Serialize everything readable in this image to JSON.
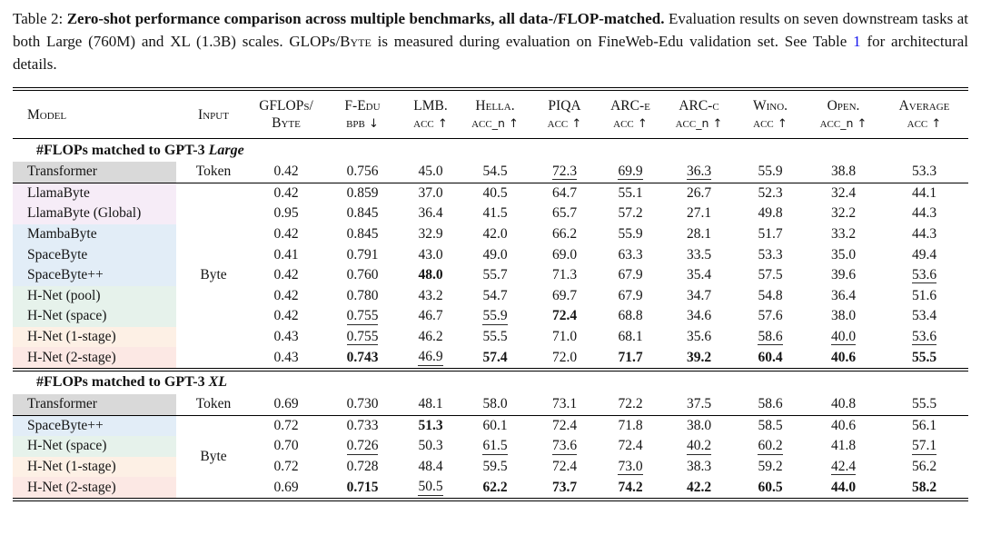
{
  "caption": {
    "label": "Table 2: ",
    "bold": "Zero-shot performance comparison across multiple benchmarks, all data-/FLOP-matched.",
    "body_1": " Evaluation results on seven downstream tasks at both Large (760M) and XL (1.3B) scales. GLOPs/",
    "smallcaps_1": "Byte",
    "body_2": " is measured during evaluation on FineWeb-Edu validation set. See Table ",
    "link": "1",
    "body_3": " for architectural details."
  },
  "colors": {
    "link_blue": "#1414ee",
    "rule_black": "#000000",
    "shades": {
      "gray": "#d9d9d9",
      "lavender": "#f6ecf7",
      "blue": "#e2edf7",
      "green": "#e6f2eb",
      "peach": "#fdf0e5",
      "pink": "#fce8e4"
    }
  },
  "table": {
    "columns": [
      {
        "key": "model",
        "title": "Model",
        "sub_sc": "",
        "sub_suffix": "",
        "arrow": ""
      },
      {
        "key": "input",
        "title": "Input",
        "sub_sc": "",
        "sub_suffix": "",
        "arrow": ""
      },
      {
        "key": "gflops",
        "title": "GFLOPs/",
        "sub_sc": "Byte",
        "sub_suffix": "",
        "arrow": ""
      },
      {
        "key": "fedu",
        "title": "F-Edu",
        "sub_sc": "bpb",
        "sub_suffix": "",
        "arrow": "↓"
      },
      {
        "key": "lmb",
        "title": "LMB.",
        "sub_sc": "acc",
        "sub_suffix": "",
        "arrow": "↑"
      },
      {
        "key": "hella",
        "title": "Hella.",
        "sub_sc": "acc",
        "sub_suffix": "_n",
        "arrow": "↑"
      },
      {
        "key": "piqa",
        "title": "PIQA",
        "sub_sc": "acc",
        "sub_suffix": "",
        "arrow": "↑"
      },
      {
        "key": "arce",
        "title": "ARC-e",
        "sub_sc": "acc",
        "sub_suffix": "",
        "arrow": "↑"
      },
      {
        "key": "arcc",
        "title": "ARC-c",
        "sub_sc": "acc",
        "sub_suffix": "_n",
        "arrow": "↑"
      },
      {
        "key": "wino",
        "title": "Wino.",
        "sub_sc": "acc",
        "sub_suffix": "",
        "arrow": "↑"
      },
      {
        "key": "open",
        "title": "Open.",
        "sub_sc": "acc",
        "sub_suffix": "_n",
        "arrow": "↑"
      },
      {
        "key": "avg",
        "title": "Average",
        "sub_sc": "acc",
        "sub_suffix": "",
        "arrow": "↑"
      }
    ],
    "sections": [
      {
        "header_prefix": "#FLOPs matched to GPT-3 ",
        "header_emph": "Large",
        "rows": [
          {
            "model": "Transformer",
            "shade": "gray",
            "input": {
              "label": "Token",
              "rowspan": 1
            },
            "sep_after": true,
            "values": [
              {
                "v": "0.42"
              },
              {
                "v": "0.756"
              },
              {
                "v": "45.0"
              },
              {
                "v": "54.5"
              },
              {
                "v": "72.3",
                "u": true
              },
              {
                "v": "69.9",
                "u": true
              },
              {
                "v": "36.3",
                "u": true
              },
              {
                "v": "55.9"
              },
              {
                "v": "38.8"
              },
              {
                "v": "53.3"
              }
            ]
          },
          {
            "model": "LlamaByte",
            "shade": "lavender",
            "input": {
              "label": "Byte",
              "rowspan": 9
            },
            "values": [
              {
                "v": "0.42"
              },
              {
                "v": "0.859"
              },
              {
                "v": "37.0"
              },
              {
                "v": "40.5"
              },
              {
                "v": "64.7"
              },
              {
                "v": "55.1"
              },
              {
                "v": "26.7"
              },
              {
                "v": "52.3"
              },
              {
                "v": "32.4"
              },
              {
                "v": "44.1"
              }
            ]
          },
          {
            "model": "LlamaByte (Global)",
            "shade": "lavender",
            "values": [
              {
                "v": "0.95"
              },
              {
                "v": "0.845"
              },
              {
                "v": "36.4"
              },
              {
                "v": "41.5"
              },
              {
                "v": "65.7"
              },
              {
                "v": "57.2"
              },
              {
                "v": "27.1"
              },
              {
                "v": "49.8"
              },
              {
                "v": "32.2"
              },
              {
                "v": "44.3"
              }
            ]
          },
          {
            "model": "MambaByte",
            "shade": "blue",
            "values": [
              {
                "v": "0.42"
              },
              {
                "v": "0.845"
              },
              {
                "v": "32.9"
              },
              {
                "v": "42.0"
              },
              {
                "v": "66.2"
              },
              {
                "v": "55.9"
              },
              {
                "v": "28.1"
              },
              {
                "v": "51.7"
              },
              {
                "v": "33.2"
              },
              {
                "v": "44.3"
              }
            ]
          },
          {
            "model": "SpaceByte",
            "shade": "blue",
            "values": [
              {
                "v": "0.41"
              },
              {
                "v": "0.791"
              },
              {
                "v": "43.0"
              },
              {
                "v": "49.0"
              },
              {
                "v": "69.0"
              },
              {
                "v": "63.3"
              },
              {
                "v": "33.5"
              },
              {
                "v": "53.3"
              },
              {
                "v": "35.0"
              },
              {
                "v": "49.4"
              }
            ]
          },
          {
            "model": "SpaceByte++",
            "shade": "blue",
            "values": [
              {
                "v": "0.42"
              },
              {
                "v": "0.760"
              },
              {
                "v": "48.0",
                "b": true
              },
              {
                "v": "55.7"
              },
              {
                "v": "71.3"
              },
              {
                "v": "67.9"
              },
              {
                "v": "35.4"
              },
              {
                "v": "57.5"
              },
              {
                "v": "39.6"
              },
              {
                "v": "53.6",
                "u": true
              }
            ]
          },
          {
            "model": "H-Net (pool)",
            "shade": "green",
            "values": [
              {
                "v": "0.42"
              },
              {
                "v": "0.780"
              },
              {
                "v": "43.2"
              },
              {
                "v": "54.7"
              },
              {
                "v": "69.7"
              },
              {
                "v": "67.9"
              },
              {
                "v": "34.7"
              },
              {
                "v": "54.8"
              },
              {
                "v": "36.4"
              },
              {
                "v": "51.6"
              }
            ]
          },
          {
            "model": "H-Net (space)",
            "shade": "green",
            "values": [
              {
                "v": "0.42"
              },
              {
                "v": "0.755",
                "u": true
              },
              {
                "v": "46.7"
              },
              {
                "v": "55.9",
                "u": true
              },
              {
                "v": "72.4",
                "b": true
              },
              {
                "v": "68.8"
              },
              {
                "v": "34.6"
              },
              {
                "v": "57.6"
              },
              {
                "v": "38.0"
              },
              {
                "v": "53.4"
              }
            ]
          },
          {
            "model": "H-Net (1-stage)",
            "shade": "peach",
            "values": [
              {
                "v": "0.43"
              },
              {
                "v": "0.755",
                "u": true
              },
              {
                "v": "46.2"
              },
              {
                "v": "55.5"
              },
              {
                "v": "71.0"
              },
              {
                "v": "68.1"
              },
              {
                "v": "35.6"
              },
              {
                "v": "58.6",
                "u": true
              },
              {
                "v": "40.0",
                "u": true
              },
              {
                "v": "53.6",
                "u": true
              }
            ]
          },
          {
            "model": "H-Net (2-stage)",
            "shade": "pink",
            "values": [
              {
                "v": "0.43"
              },
              {
                "v": "0.743",
                "b": true
              },
              {
                "v": "46.9",
                "u": true
              },
              {
                "v": "57.4",
                "b": true
              },
              {
                "v": "72.0"
              },
              {
                "v": "71.7",
                "b": true
              },
              {
                "v": "39.2",
                "b": true
              },
              {
                "v": "60.4",
                "b": true
              },
              {
                "v": "40.6",
                "b": true
              },
              {
                "v": "55.5",
                "b": true
              }
            ]
          }
        ]
      },
      {
        "header_prefix": "#FLOPs matched to GPT-3 ",
        "header_emph": "XL",
        "rows": [
          {
            "model": "Transformer",
            "shade": "gray",
            "input": {
              "label": "Token",
              "rowspan": 1
            },
            "sep_after": true,
            "values": [
              {
                "v": "0.69"
              },
              {
                "v": "0.730"
              },
              {
                "v": "48.1"
              },
              {
                "v": "58.0"
              },
              {
                "v": "73.1"
              },
              {
                "v": "72.2"
              },
              {
                "v": "37.5"
              },
              {
                "v": "58.6"
              },
              {
                "v": "40.8"
              },
              {
                "v": "55.5"
              }
            ]
          },
          {
            "model": "SpaceByte++",
            "shade": "blue",
            "input": {
              "label": "Byte",
              "rowspan": 4
            },
            "values": [
              {
                "v": "0.72"
              },
              {
                "v": "0.733"
              },
              {
                "v": "51.3",
                "b": true
              },
              {
                "v": "60.1"
              },
              {
                "v": "72.4"
              },
              {
                "v": "71.8"
              },
              {
                "v": "38.0"
              },
              {
                "v": "58.5"
              },
              {
                "v": "40.6"
              },
              {
                "v": "56.1"
              }
            ]
          },
          {
            "model": "H-Net (space)",
            "shade": "green",
            "values": [
              {
                "v": "0.70"
              },
              {
                "v": "0.726",
                "u": true
              },
              {
                "v": "50.3"
              },
              {
                "v": "61.5",
                "u": true
              },
              {
                "v": "73.6",
                "u": true
              },
              {
                "v": "72.4"
              },
              {
                "v": "40.2",
                "u": true
              },
              {
                "v": "60.2",
                "u": true
              },
              {
                "v": "41.8"
              },
              {
                "v": "57.1",
                "u": true
              }
            ]
          },
          {
            "model": "H-Net (1-stage)",
            "shade": "peach",
            "values": [
              {
                "v": "0.72"
              },
              {
                "v": "0.728"
              },
              {
                "v": "48.4"
              },
              {
                "v": "59.5"
              },
              {
                "v": "72.4"
              },
              {
                "v": "73.0",
                "u": true
              },
              {
                "v": "38.3"
              },
              {
                "v": "59.2"
              },
              {
                "v": "42.4",
                "u": true
              },
              {
                "v": "56.2"
              }
            ]
          },
          {
            "model": "H-Net (2-stage)",
            "shade": "pink",
            "values": [
              {
                "v": "0.69"
              },
              {
                "v": "0.715",
                "b": true
              },
              {
                "v": "50.5",
                "u": true
              },
              {
                "v": "62.2",
                "b": true
              },
              {
                "v": "73.7",
                "b": true
              },
              {
                "v": "74.2",
                "b": true
              },
              {
                "v": "42.2",
                "b": true
              },
              {
                "v": "60.5",
                "b": true
              },
              {
                "v": "44.0",
                "b": true
              },
              {
                "v": "58.2",
                "b": true
              }
            ]
          }
        ]
      }
    ]
  }
}
